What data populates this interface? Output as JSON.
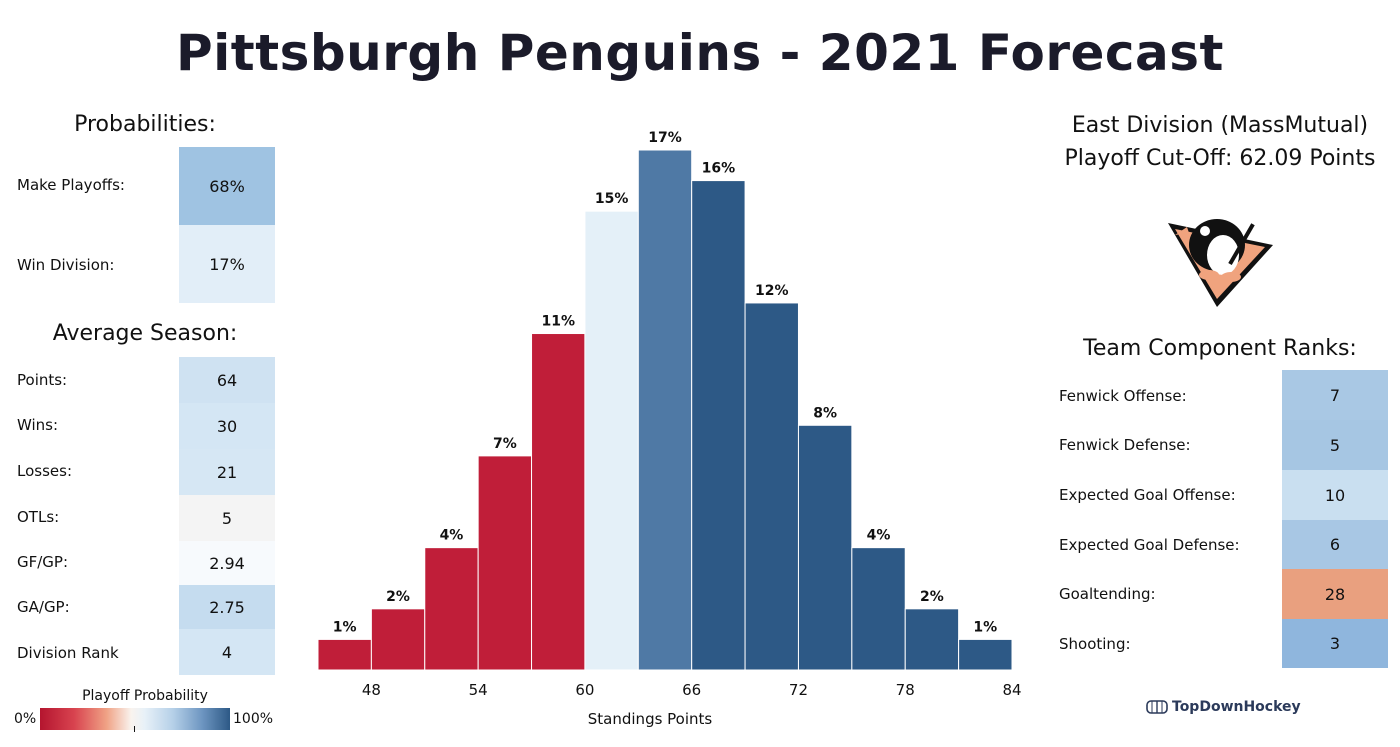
{
  "title": "Pittsburgh Penguins - 2021 Forecast",
  "probabilities": {
    "heading": "Probabilities:",
    "rows": [
      {
        "label": "Make Playoffs:",
        "value": "68%",
        "color": "#9fc3e2"
      },
      {
        "label": "Win Division:",
        "value": "17%",
        "color": "#e2eef8"
      }
    ]
  },
  "average_season": {
    "heading": "Average Season:",
    "rows": [
      {
        "label": "Points:",
        "value": "64",
        "color": "#cfe2f2"
      },
      {
        "label": "Wins:",
        "value": "30",
        "color": "#d4e6f4"
      },
      {
        "label": "Losses:",
        "value": "21",
        "color": "#d6e7f4"
      },
      {
        "label": "OTLs:",
        "value": "5",
        "color": "#f4f4f4"
      },
      {
        "label": "GF/GP:",
        "value": "2.94",
        "color": "#f7fafd"
      },
      {
        "label": "GA/GP:",
        "value": "2.75",
        "color": "#c5dcef"
      },
      {
        "label": "Division Rank",
        "value": "4",
        "color": "#d4e6f4"
      }
    ]
  },
  "legend": {
    "title": "Playoff Probability",
    "min_label": "0%",
    "max_label": "100%"
  },
  "division": {
    "name": "East Division (MassMutual)",
    "cutoff": "Playoff Cut-Off: 62.09 Points"
  },
  "team_ranks": {
    "heading": "Team Component Ranks:",
    "rows": [
      {
        "label": "Fenwick Offense:",
        "value": "7",
        "color": "#a9c8e4"
      },
      {
        "label": "Fenwick Defense:",
        "value": "5",
        "color": "#a6c6e3"
      },
      {
        "label": "Expected Goal Offense:",
        "value": "10",
        "color": "#c9dff0"
      },
      {
        "label": "Expected Goal Defense:",
        "value": "6",
        "color": "#a8c7e4"
      },
      {
        "label": "Goaltending:",
        "value": "28",
        "color": "#e9a07f"
      },
      {
        "label": "Shooting:",
        "value": "3",
        "color": "#8fb6dd"
      }
    ]
  },
  "brand": "TopDownHockey",
  "colors": {
    "red": "#c01e39",
    "light": "#e4f0f8",
    "mid_blue": "#4f79a5",
    "dark_blue": "#2d5986",
    "title": "#1b1b2a"
  },
  "chart_data": {
    "type": "bar",
    "xlabel": "Standings Points",
    "categories": [
      "46.5",
      "49.5",
      "52.5",
      "55.5",
      "58.5",
      "61.5",
      "64.5",
      "67.5",
      "70.5",
      "73.5",
      "76.5",
      "79.5",
      "82.5"
    ],
    "values": [
      1,
      2,
      4,
      7,
      11,
      15,
      17,
      16,
      12,
      8,
      4,
      2,
      1
    ],
    "data_labels": [
      "1%",
      "2%",
      "4%",
      "7%",
      "11%",
      "15%",
      "17%",
      "16%",
      "12%",
      "8%",
      "4%",
      "2%",
      "1%"
    ],
    "bar_colors": [
      "#c01e39",
      "#c01e39",
      "#c01e39",
      "#c01e39",
      "#c01e39",
      "#e4f0f8",
      "#4f79a5",
      "#2d5986",
      "#2d5986",
      "#2d5986",
      "#2d5986",
      "#2d5986",
      "#2d5986"
    ],
    "x_ticks": [
      "48",
      "54",
      "60",
      "66",
      "72",
      "78",
      "84"
    ],
    "xlim": [
      45,
      84
    ],
    "ylim": [
      0,
      17
    ],
    "grid": false
  }
}
